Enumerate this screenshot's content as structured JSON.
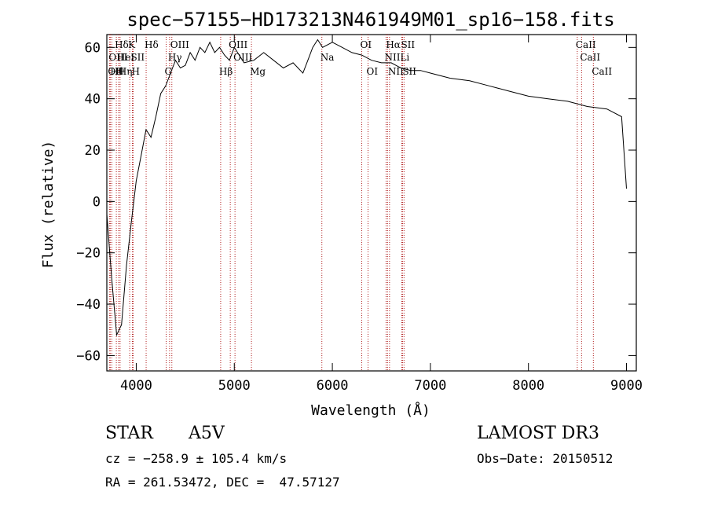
{
  "header": {
    "title": "spec−57155−HD173213N461949M01_sp16−158.fits"
  },
  "info": {
    "object_type": "STAR",
    "subclass": "A5V",
    "survey": "LAMOST DR3",
    "redshift": "cz = −258.9 ± 105.4 km/s",
    "obs_date": "Obs−Date: 20150512",
    "coords": "RA = 261.53472, DEC =  47.57127"
  },
  "colors": {
    "spectrum": "#000000",
    "line_marker": "#b22222",
    "axes": "#000000"
  },
  "chart_data": {
    "type": "line",
    "title": "spec−57155−HD173213N461949M01_sp16−158.fits",
    "xlabel": "Wavelength (Å)",
    "ylabel": "Flux (relative)",
    "xlim": [
      3700,
      9100
    ],
    "ylim": [
      -66,
      65
    ],
    "xticks": [
      4000,
      5000,
      6000,
      7000,
      8000,
      9000
    ],
    "yticks": [
      -60,
      -40,
      -20,
      0,
      20,
      40,
      60
    ],
    "grid": false,
    "series": [
      {
        "x": [
          3700,
          3750,
          3800,
          3850,
          3900,
          3950,
          4000,
          4050,
          4100,
          4150,
          4200,
          4250,
          4300,
          4350,
          4400,
          4450,
          4500,
          4550,
          4600,
          4650,
          4700,
          4750,
          4800,
          4850,
          4900,
          4950,
          5000,
          5100,
          5200,
          5300,
          5400,
          5500,
          5600,
          5700,
          5750,
          5800,
          5850,
          5900,
          6000,
          6100,
          6200,
          6300,
          6400,
          6500,
          6600,
          6700,
          6800,
          6900,
          7000,
          7200,
          7400,
          7600,
          7800,
          8000,
          8200,
          8400,
          8600,
          8800,
          8950,
          9000
        ],
        "y": [
          -5,
          -30,
          -52,
          -48,
          -25,
          -8,
          8,
          18,
          28,
          25,
          33,
          42,
          45,
          50,
          55,
          52,
          53,
          58,
          55,
          60,
          58,
          62,
          58,
          60,
          57,
          55,
          60,
          54,
          55,
          58,
          55,
          52,
          54,
          50,
          55,
          60,
          63,
          60,
          62,
          60,
          58,
          57,
          55,
          54,
          54,
          52,
          51,
          51,
          50,
          48,
          47,
          45,
          43,
          41,
          40,
          39,
          37,
          36,
          33,
          5
        ]
      }
    ],
    "line_markers": [
      {
        "label": "OII",
        "wavelength": 3727,
        "row": 2
      },
      {
        "label": "Hθ",
        "wavelength": 3750,
        "row": 2
      },
      {
        "label": "OIII",
        "wavelength": 3735,
        "row": 1
      },
      {
        "label": "Hδ",
        "wavelength": 3797,
        "row": 0
      },
      {
        "label": "HeI",
        "wavelength": 3820,
        "row": 1
      },
      {
        "label": "Hη",
        "wavelength": 3835,
        "row": 2
      },
      {
        "label": "K",
        "wavelength": 3933,
        "row": 0
      },
      {
        "label": "SII",
        "wavelength": 3960,
        "row": 1
      },
      {
        "label": "H",
        "wavelength": 3968,
        "row": 2
      },
      {
        "label": "Hδ",
        "wavelength": 4101,
        "row": 0
      },
      {
        "label": "OIII",
        "wavelength": 4363,
        "row": 0
      },
      {
        "label": "Hγ",
        "wavelength": 4340,
        "row": 1
      },
      {
        "label": "G",
        "wavelength": 4305,
        "row": 2
      },
      {
        "label": "Hβ",
        "wavelength": 4861,
        "row": 2
      },
      {
        "label": "OIII",
        "wavelength": 4959,
        "row": 0
      },
      {
        "label": "OIII",
        "wavelength": 5007,
        "row": 1
      },
      {
        "label": "Mg",
        "wavelength": 5175,
        "row": 2
      },
      {
        "label": "Na",
        "wavelength": 5893,
        "row": 1
      },
      {
        "label": "OI",
        "wavelength": 6300,
        "row": 0
      },
      {
        "label": "OI",
        "wavelength": 6364,
        "row": 2
      },
      {
        "label": "Hα",
        "wavelength": 6563,
        "row": 0
      },
      {
        "label": "NII",
        "wavelength": 6548,
        "row": 1
      },
      {
        "label": "NII",
        "wavelength": 6583,
        "row": 2
      },
      {
        "label": "SII",
        "wavelength": 6716,
        "row": 0
      },
      {
        "label": "Li",
        "wavelength": 6708,
        "row": 1
      },
      {
        "label": "SII",
        "wavelength": 6731,
        "row": 2
      },
      {
        "label": "CaII",
        "wavelength": 8498,
        "row": 0
      },
      {
        "label": "CaII",
        "wavelength": 8542,
        "row": 1
      },
      {
        "label": "CaII",
        "wavelength": 8662,
        "row": 2
      }
    ]
  }
}
